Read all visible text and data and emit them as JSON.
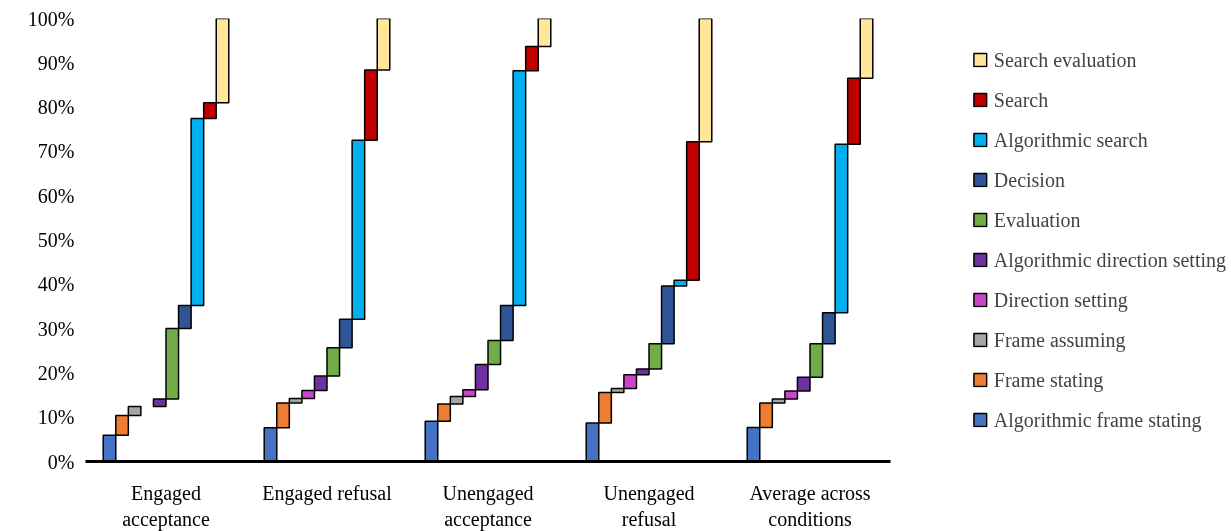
{
  "chart_data": {
    "type": "bar",
    "categories": [
      "Engaged acceptance",
      "Engaged refusal",
      "Unengaged acceptance",
      "Unengaged refusal",
      "Average across conditions"
    ],
    "ylim": [
      0,
      100
    ],
    "yticks": [
      {
        "value": 0,
        "label": "0%"
      },
      {
        "value": 10,
        "label": "10%"
      },
      {
        "value": 20,
        "label": "20%"
      },
      {
        "value": 30,
        "label": "30%"
      },
      {
        "value": 40,
        "label": "40%"
      },
      {
        "value": 50,
        "label": "50%"
      },
      {
        "value": 60,
        "label": "60%"
      },
      {
        "value": 70,
        "label": "70%"
      },
      {
        "value": 80,
        "label": "80%"
      },
      {
        "value": 90,
        "label": "90%"
      },
      {
        "value": 100,
        "label": "100%"
      }
    ],
    "grid": false,
    "legend": "right",
    "series": [
      {
        "name": "Algorithmic frame stating",
        "color": "#4472c4",
        "values": [
          5.9,
          7.6,
          9.1,
          8.7,
          7.7
        ],
        "base": [
          0,
          0,
          0,
          0,
          0
        ]
      },
      {
        "name": "Frame stating",
        "color": "#ed7d31",
        "values": [
          4.5,
          5.6,
          3.9,
          6.9,
          5.5
        ],
        "base": [
          5.9,
          7.6,
          9.1,
          8.7,
          7.7
        ]
      },
      {
        "name": "Frame assuming",
        "color": "#a5a5a5",
        "values": [
          2.0,
          1.0,
          1.7,
          0.9,
          0.9
        ],
        "base": [
          10.4,
          13.2,
          13.0,
          15.6,
          13.2
        ]
      },
      {
        "name": "Direction setting",
        "color": "#cc44cc",
        "values": [
          null,
          1.8,
          1.5,
          3.1,
          1.8
        ],
        "base": [
          null,
          14.2,
          14.7,
          16.5,
          14.1
        ]
      },
      {
        "name": "Algorithmic direction setting",
        "color": "#7030a0",
        "values": [
          1.7,
          3.3,
          5.7,
          1.3,
          3.1
        ],
        "base": [
          12.4,
          16.0,
          16.2,
          19.6,
          15.9
        ]
      },
      {
        "name": "Evaluation",
        "color": "#70ad47",
        "values": [
          15.9,
          6.4,
          5.4,
          5.7,
          7.6
        ],
        "base": [
          14.1,
          19.3,
          21.9,
          20.9,
          19.0
        ]
      },
      {
        "name": "Decision",
        "color": "#2f5597",
        "values": [
          5.2,
          6.4,
          7.9,
          13.0,
          7.0
        ],
        "base": [
          30.0,
          25.7,
          27.3,
          26.6,
          26.6
        ]
      },
      {
        "name": "Algorithmic search",
        "color": "#00b0f0",
        "values": [
          42.2,
          40.4,
          53.0,
          1.3,
          38.0
        ],
        "base": [
          35.2,
          32.1,
          35.2,
          39.6,
          33.6
        ]
      },
      {
        "name": "Search",
        "color": "#c00000",
        "values": [
          3.6,
          15.9,
          5.5,
          31.3,
          14.9
        ],
        "base": [
          77.4,
          72.5,
          88.2,
          40.9,
          71.6
        ]
      },
      {
        "name": "Search evaluation",
        "color": "#ffe699",
        "values": [
          19.0,
          11.6,
          6.3,
          27.8,
          13.5
        ],
        "base": [
          81.0,
          88.4,
          93.7,
          72.2,
          86.5
        ]
      }
    ]
  }
}
